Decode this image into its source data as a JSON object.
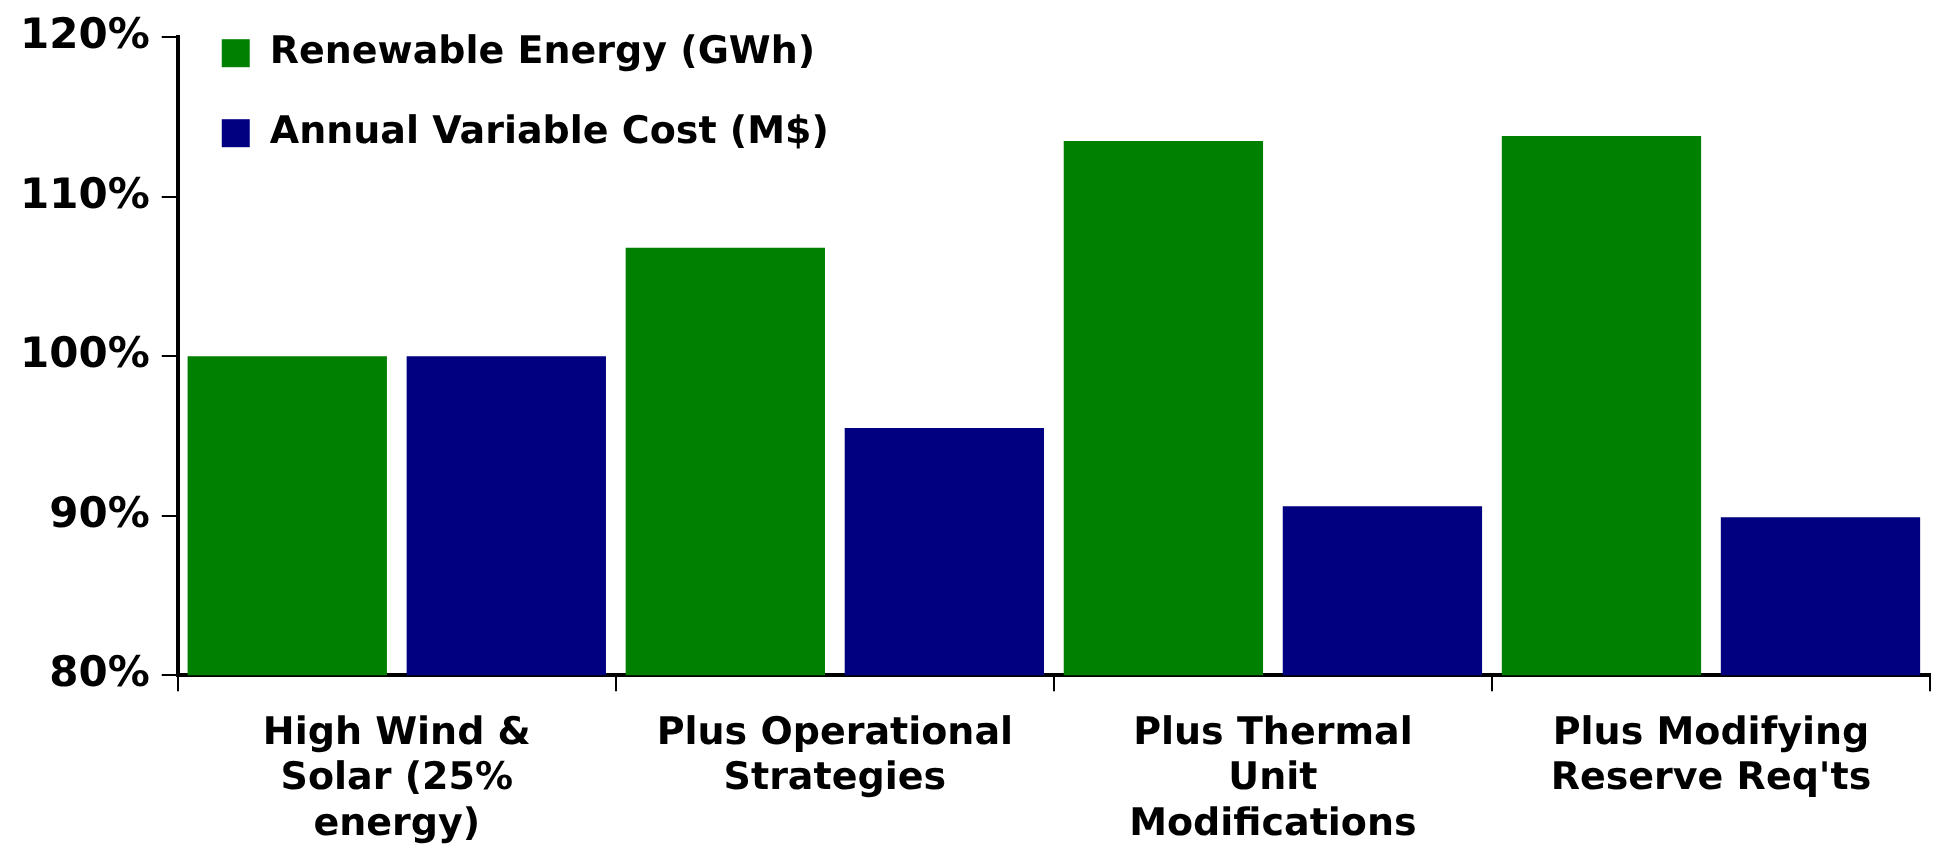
{
  "chart_data": {
    "type": "bar",
    "categories": [
      "High Wind & Solar (25% energy)",
      "Plus Operational Strategies",
      "Plus Thermal Unit Modifications",
      "Plus Modifying Reserve Req'ts"
    ],
    "series": [
      {
        "name": "Renewable Energy (GWh)",
        "color": "#008000",
        "values": [
          100,
          106.8,
          113.5,
          113.8
        ]
      },
      {
        "name": "Annual Variable Cost (M$)",
        "color": "#000080",
        "values": [
          100,
          95.5,
          90.6,
          89.9
        ]
      }
    ],
    "ylim": [
      80,
      120
    ],
    "yticks": [
      {
        "value": 80,
        "label": "80%"
      },
      {
        "value": 90,
        "label": "90%"
      },
      {
        "value": 100,
        "label": "100%"
      },
      {
        "value": 110,
        "label": "110%"
      },
      {
        "value": 120,
        "label": "120%"
      }
    ],
    "grid": false,
    "legend": "top left"
  }
}
